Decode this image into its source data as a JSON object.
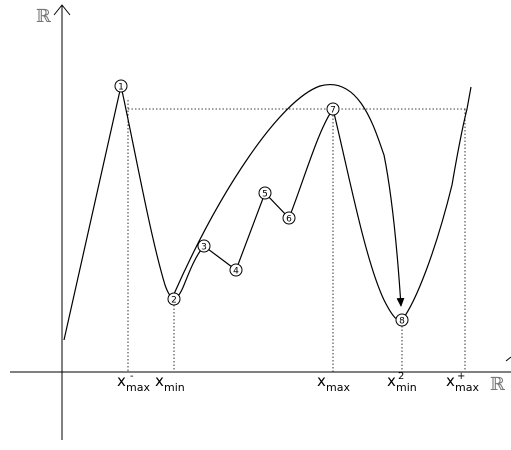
{
  "axes": {
    "y_label": "ℝ",
    "x_label": "ℝ"
  },
  "points": [
    {
      "id": "point-1",
      "label": "1"
    },
    {
      "id": "point-2",
      "label": "2"
    },
    {
      "id": "point-3",
      "label": "3"
    },
    {
      "id": "point-4",
      "label": "4"
    },
    {
      "id": "point-5",
      "label": "5"
    },
    {
      "id": "point-6",
      "label": "6"
    },
    {
      "id": "point-7",
      "label": "7"
    },
    {
      "id": "point-8",
      "label": "8"
    }
  ],
  "ticks": {
    "xmax_minus": {
      "main": "x",
      "sub": "max",
      "sup": "-"
    },
    "xmin": {
      "main": "x",
      "sub": "min"
    },
    "xmax": {
      "main": "x",
      "sub": "max"
    },
    "xmin_2": {
      "main": "x",
      "sub": "min",
      "sup": "2"
    },
    "xmax_plus": {
      "main": "x",
      "sub": "max",
      "sup": "+"
    }
  }
}
